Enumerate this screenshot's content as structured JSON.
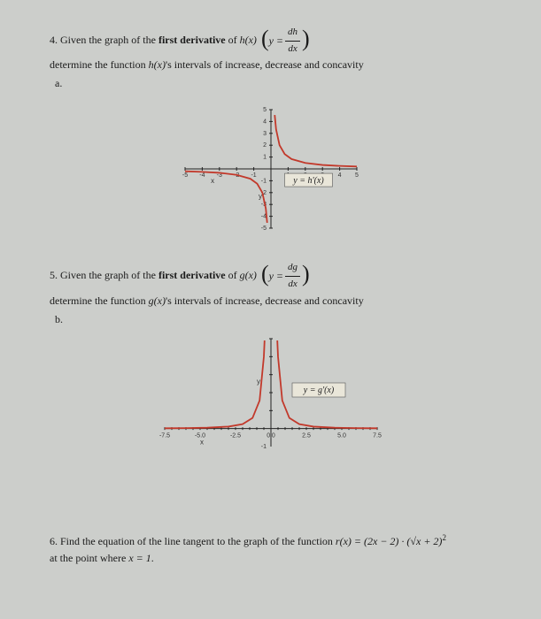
{
  "q4": {
    "prefix": "4. Given the graph of the ",
    "bold": "first derivative",
    "mid": " of ",
    "func": "h(x)",
    "yEq": "y =",
    "fracNum": "dh",
    "fracDen": "dx",
    "line2a": "determine the function ",
    "line2b": "h(x)",
    "line2c": "'s intervals of increase, decrease and concavity",
    "sub": "a.",
    "graph": {
      "xlim": [
        -5,
        5
      ],
      "ylim": [
        -5,
        5
      ],
      "xticks": [
        -5,
        -4,
        -3,
        -2,
        -1,
        1,
        2,
        3,
        4,
        5
      ],
      "yticks": [
        -5,
        -4,
        -3,
        -2,
        -1,
        1,
        2,
        3,
        4,
        5
      ],
      "axisLabelX": "x",
      "axisLabelY": "y",
      "curveColor": "#c2392b",
      "boxLabel": "y = h'(x)",
      "leftCurve": [
        [
          -5,
          -0.2
        ],
        [
          -4,
          -0.25
        ],
        [
          -3,
          -0.33
        ],
        [
          -2,
          -0.5
        ],
        [
          -1.2,
          -0.83
        ],
        [
          -0.8,
          -1.25
        ],
        [
          -0.5,
          -2
        ],
        [
          -0.3,
          -3.33
        ],
        [
          -0.22,
          -4.55
        ]
      ],
      "rightCurve": [
        [
          0.22,
          4.55
        ],
        [
          0.3,
          3.33
        ],
        [
          0.5,
          2
        ],
        [
          0.8,
          1.25
        ],
        [
          1.2,
          0.83
        ],
        [
          2,
          0.5
        ],
        [
          3,
          0.33
        ],
        [
          4,
          0.25
        ],
        [
          5,
          0.2
        ]
      ]
    }
  },
  "q5": {
    "prefix": "5. Given the graph of the ",
    "bold": "first derivative",
    "mid": " of ",
    "func": "g(x)",
    "yEq": "y =",
    "fracNum": "dg",
    "fracDen": "dx",
    "line2a": "determine the function ",
    "line2b": "g(x)",
    "line2c": "'s intervals of increase, decrease and concavity",
    "sub": "b.",
    "graph": {
      "xlim": [
        -7.5,
        7.5
      ],
      "ylim": [
        -1,
        5
      ],
      "xticks": [
        -7.5,
        -5.0,
        -2.5,
        2.5,
        5.0,
        7.5
      ],
      "xzero": "0|0",
      "yticks": [
        1,
        2,
        3,
        4,
        5
      ],
      "axisLabelX": "x",
      "axisLabelY": "y",
      "curveColor": "#c2392b",
      "boxLabel": "y = g'(x)",
      "leftCurve": [
        [
          -7.5,
          0.018
        ],
        [
          -6,
          0.028
        ],
        [
          -4.5,
          0.049
        ],
        [
          -3,
          0.11
        ],
        [
          -2,
          0.25
        ],
        [
          -1.3,
          0.59
        ],
        [
          -0.8,
          1.56
        ],
        [
          -0.5,
          4.0
        ],
        [
          -0.45,
          4.9
        ]
      ],
      "rightCurve": [
        [
          0.45,
          4.9
        ],
        [
          0.5,
          4.0
        ],
        [
          0.8,
          1.56
        ],
        [
          1.3,
          0.59
        ],
        [
          2,
          0.25
        ],
        [
          3,
          0.11
        ],
        [
          4.5,
          0.049
        ],
        [
          6,
          0.028
        ],
        [
          7.5,
          0.018
        ]
      ]
    }
  },
  "q6": {
    "prefix": "6. Find the equation of the line tangent to the graph of the function ",
    "func": "r(x) = (2x − 2) · (√x + 2)",
    "sup": "2",
    "line2a": "at the point where ",
    "line2b": "x = 1",
    "line2c": "."
  }
}
